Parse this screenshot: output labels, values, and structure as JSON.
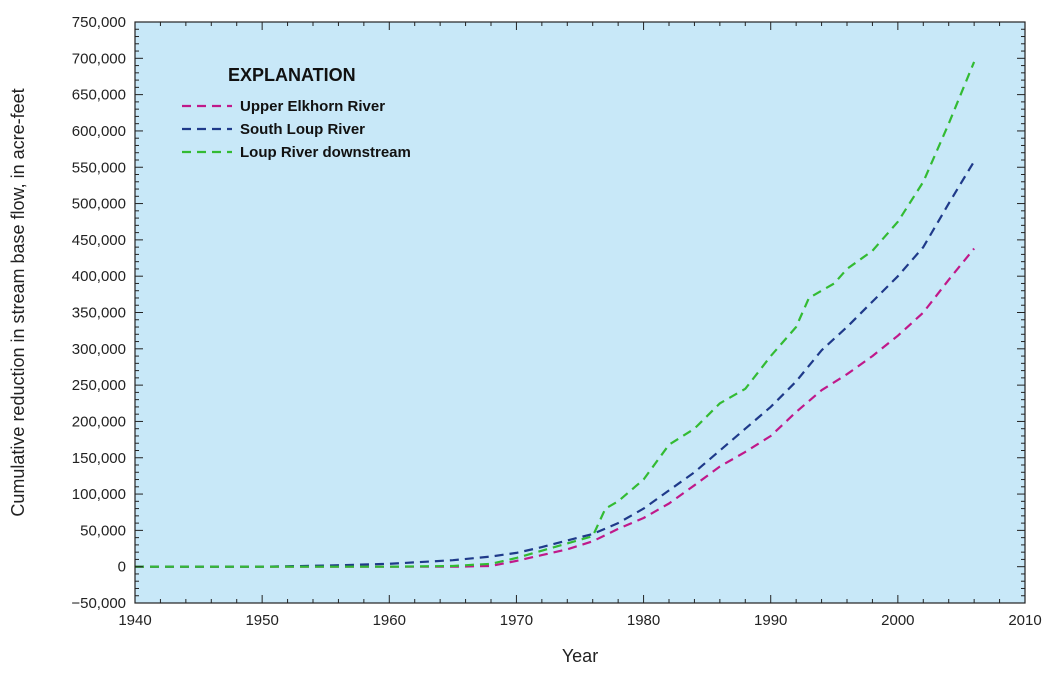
{
  "chart_data": {
    "type": "line",
    "title": "",
    "xlabel": "Year",
    "ylabel": "Cumulative reduction in stream base flow, in acre-feet",
    "xlim": [
      1940,
      2010
    ],
    "ylim": [
      -50000,
      750000
    ],
    "x_ticks": [
      1940,
      1950,
      1960,
      1970,
      1980,
      1990,
      2000,
      2010
    ],
    "y_ticks": [
      -50000,
      0,
      50000,
      100000,
      150000,
      200000,
      250000,
      300000,
      350000,
      400000,
      450000,
      500000,
      550000,
      600000,
      650000,
      700000,
      750000
    ],
    "x_tick_labels": [
      "1940",
      "1950",
      "1960",
      "1970",
      "1980",
      "1990",
      "2000",
      "2010"
    ],
    "y_tick_labels": [
      "−50,000",
      "0",
      "50,000",
      "100,000",
      "150,000",
      "200,000",
      "250,000",
      "300,000",
      "350,000",
      "400,000",
      "450,000",
      "500,000",
      "550,000",
      "600,000",
      "650,000",
      "700,000",
      "750,000"
    ],
    "grid": false,
    "background_color": "#c8e8f8",
    "legend": {
      "title": "EXPLANATION",
      "placement": "top-left"
    },
    "series": [
      {
        "name": "Upper Elkhorn River",
        "color": "#c0198a",
        "style": "dashed",
        "points": [
          [
            1940,
            0
          ],
          [
            1950,
            0
          ],
          [
            1955,
            0
          ],
          [
            1960,
            0
          ],
          [
            1965,
            0
          ],
          [
            1968,
            1000
          ],
          [
            1970,
            8000
          ],
          [
            1972,
            16000
          ],
          [
            1974,
            24000
          ],
          [
            1976,
            35000
          ],
          [
            1978,
            52000
          ],
          [
            1980,
            67000
          ],
          [
            1982,
            87000
          ],
          [
            1984,
            112000
          ],
          [
            1986,
            138000
          ],
          [
            1988,
            158000
          ],
          [
            1990,
            180000
          ],
          [
            1992,
            213000
          ],
          [
            1994,
            243000
          ],
          [
            1996,
            265000
          ],
          [
            1998,
            290000
          ],
          [
            2000,
            318000
          ],
          [
            2002,
            350000
          ],
          [
            2004,
            395000
          ],
          [
            2006,
            438000
          ]
        ]
      },
      {
        "name": "South Loup River",
        "color": "#1f3a8a",
        "style": "dashed",
        "points": [
          [
            1940,
            0
          ],
          [
            1950,
            0
          ],
          [
            1955,
            1500
          ],
          [
            1960,
            4000
          ],
          [
            1965,
            9000
          ],
          [
            1968,
            14000
          ],
          [
            1970,
            19000
          ],
          [
            1972,
            27000
          ],
          [
            1974,
            36000
          ],
          [
            1976,
            45000
          ],
          [
            1978,
            60000
          ],
          [
            1980,
            80000
          ],
          [
            1982,
            105000
          ],
          [
            1984,
            130000
          ],
          [
            1986,
            160000
          ],
          [
            1988,
            190000
          ],
          [
            1990,
            220000
          ],
          [
            1992,
            255000
          ],
          [
            1994,
            298000
          ],
          [
            1996,
            330000
          ],
          [
            1998,
            365000
          ],
          [
            2000,
            400000
          ],
          [
            2002,
            440000
          ],
          [
            2004,
            500000
          ],
          [
            2006,
            558000
          ]
        ]
      },
      {
        "name": "Loup River downstream",
        "color": "#33bb33",
        "style": "dashed",
        "points": [
          [
            1940,
            0
          ],
          [
            1950,
            0
          ],
          [
            1955,
            0
          ],
          [
            1960,
            0
          ],
          [
            1965,
            1000
          ],
          [
            1968,
            4000
          ],
          [
            1970,
            12000
          ],
          [
            1972,
            22000
          ],
          [
            1974,
            32000
          ],
          [
            1976,
            42000
          ],
          [
            1977,
            80000
          ],
          [
            1978,
            90000
          ],
          [
            1980,
            120000
          ],
          [
            1982,
            168000
          ],
          [
            1984,
            190000
          ],
          [
            1986,
            225000
          ],
          [
            1988,
            245000
          ],
          [
            1990,
            290000
          ],
          [
            1992,
            330000
          ],
          [
            1993,
            370000
          ],
          [
            1995,
            390000
          ],
          [
            1996,
            410000
          ],
          [
            1998,
            435000
          ],
          [
            2000,
            475000
          ],
          [
            2002,
            530000
          ],
          [
            2004,
            610000
          ],
          [
            2006,
            695000
          ]
        ]
      }
    ]
  }
}
